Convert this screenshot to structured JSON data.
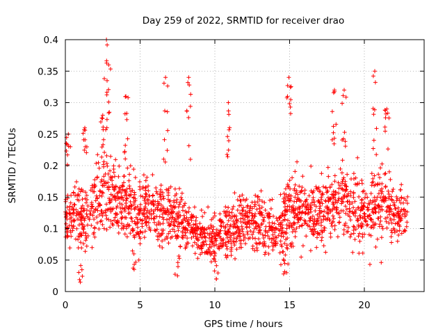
{
  "chart_data": {
    "type": "scatter",
    "title": "Day 259 of 2022, SRMTID for receiver drao",
    "xlabel": "GPS time / hours",
    "ylabel": "SRMTID / TECUs",
    "xlim": [
      0,
      24
    ],
    "ylim": [
      0,
      0.4
    ],
    "x_ticks": [
      0,
      5,
      10,
      15,
      20
    ],
    "x_tick_labels": [
      "0",
      "5",
      "10",
      "15",
      "20"
    ],
    "y_ticks": [
      0,
      0.05,
      0.1,
      0.15,
      0.2,
      0.25,
      0.3,
      0.35,
      0.4
    ],
    "y_tick_labels": [
      "0",
      "0.05",
      "0.1",
      "0.15",
      "0.2",
      "0.25",
      "0.3",
      "0.35",
      "0.4"
    ],
    "grid": true,
    "marker": "+",
    "marker_color": "#ff0000",
    "sampling": "approximately 2000 points spanning 0 to 22.9 hours; dense scatter mostly between 0.05 and 0.25 TECU",
    "envelope": {
      "x": [
        0,
        1,
        2,
        2.5,
        3,
        4,
        5,
        6,
        7,
        8,
        9,
        10,
        11,
        12,
        13,
        14,
        15,
        16,
        17,
        18,
        18.5,
        19,
        20,
        21,
        21.5,
        22,
        22.9
      ],
      "center": [
        0.12,
        0.12,
        0.14,
        0.15,
        0.15,
        0.14,
        0.13,
        0.13,
        0.12,
        0.11,
        0.09,
        0.08,
        0.1,
        0.11,
        0.11,
        0.09,
        0.13,
        0.13,
        0.12,
        0.14,
        0.15,
        0.13,
        0.12,
        0.14,
        0.14,
        0.12,
        0.12
      ],
      "spread": [
        0.04,
        0.045,
        0.045,
        0.06,
        0.05,
        0.05,
        0.045,
        0.045,
        0.045,
        0.04,
        0.035,
        0.03,
        0.035,
        0.04,
        0.04,
        0.035,
        0.05,
        0.045,
        0.045,
        0.05,
        0.055,
        0.05,
        0.045,
        0.055,
        0.05,
        0.04,
        0.035
      ]
    },
    "spikes": [
      {
        "x": 0.2,
        "peak": 0.25
      },
      {
        "x": 1.3,
        "peak": 0.26
      },
      {
        "x": 2.5,
        "peak": 0.28
      },
      {
        "x": 2.75,
        "peak": 0.4
      },
      {
        "x": 2.9,
        "peak": 0.36
      },
      {
        "x": 4.05,
        "peak": 0.31
      },
      {
        "x": 6.7,
        "peak": 0.34
      },
      {
        "x": 8.25,
        "peak": 0.34
      },
      {
        "x": 10.9,
        "peak": 0.3
      },
      {
        "x": 14.95,
        "peak": 0.34
      },
      {
        "x": 18.0,
        "peak": 0.32
      },
      {
        "x": 18.65,
        "peak": 0.32
      },
      {
        "x": 20.7,
        "peak": 0.35
      },
      {
        "x": 21.5,
        "peak": 0.29
      }
    ],
    "dips": [
      {
        "x": 1.0,
        "low": 0.015
      },
      {
        "x": 4.6,
        "low": 0.035
      },
      {
        "x": 7.5,
        "low": 0.025
      },
      {
        "x": 10.1,
        "low": 0.02
      },
      {
        "x": 14.6,
        "low": 0.028
      },
      {
        "x": 14.8,
        "low": 0.03
      }
    ]
  }
}
